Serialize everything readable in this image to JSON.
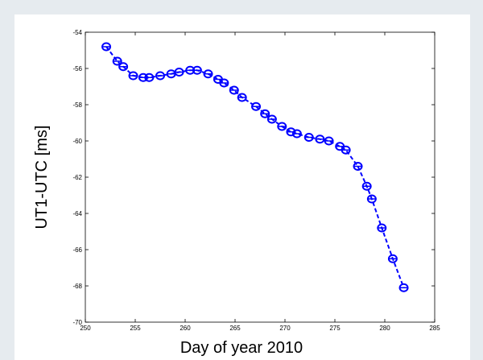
{
  "chart_data": {
    "type": "line",
    "xlabel": "Day of year 2010",
    "ylabel": "UT1-UTC [ms]",
    "series": [
      {
        "color": "#0000ff",
        "x": [
          252.1,
          253.2,
          253.8,
          254.8,
          255.8,
          256.4,
          257.5,
          258.6,
          259.4,
          260.5,
          261.2,
          262.3,
          263.3,
          263.9,
          264.9,
          265.7,
          267.1,
          268.0,
          268.7,
          269.7,
          270.6,
          271.2,
          272.4,
          273.5,
          274.4,
          275.5,
          276.1,
          277.3,
          278.2,
          278.7,
          279.7,
          280.8,
          281.9
        ],
        "values": [
          -54.8,
          -55.6,
          -55.9,
          -56.4,
          -56.5,
          -56.5,
          -56.4,
          -56.3,
          -56.2,
          -56.1,
          -56.1,
          -56.3,
          -56.6,
          -56.8,
          -57.2,
          -57.6,
          -58.1,
          -58.5,
          -58.8,
          -59.2,
          -59.5,
          -59.6,
          -59.8,
          -59.9,
          -60.0,
          -60.3,
          -60.5,
          -61.4,
          -62.5,
          -63.2,
          -64.8,
          -66.5,
          -68.1
        ]
      }
    ],
    "xlim": [
      250,
      285
    ],
    "xticks": [
      250,
      255,
      260,
      265,
      270,
      275,
      280,
      285
    ],
    "ylim": [
      -70,
      -54
    ],
    "yticks": [
      -70,
      -68,
      -66,
      -64,
      -62,
      -60,
      -58,
      -56,
      -54
    ]
  }
}
